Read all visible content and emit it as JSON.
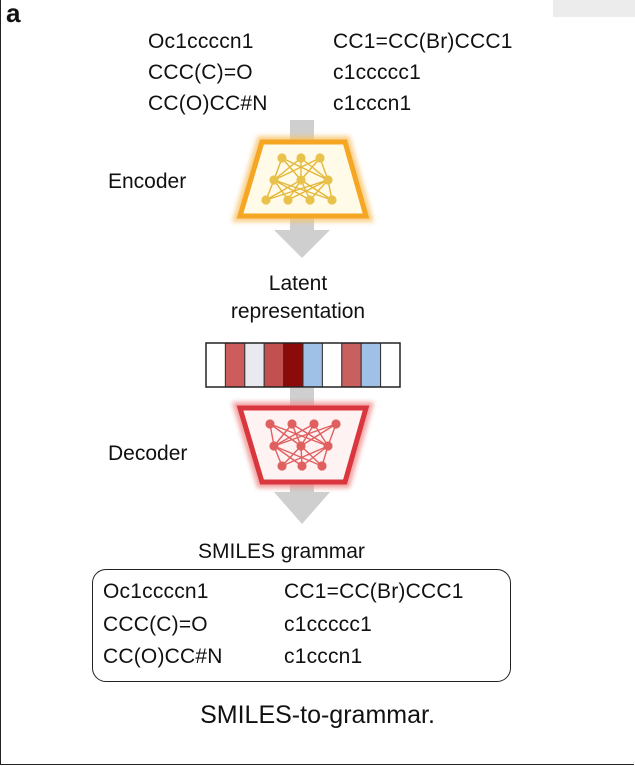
{
  "panel_letter": "a",
  "input_smiles": {
    "left": [
      "Oc1ccccn1",
      "CCC(C)=O",
      "CC(O)CC#N"
    ],
    "right": [
      "CC1=CC(Br)CCC1",
      "c1ccccc1",
      "c1cccn1"
    ]
  },
  "labels": {
    "encoder": "Encoder",
    "latent_line1": "Latent",
    "latent_line2": "representation",
    "decoder": "Decoder",
    "grammar": "SMILES grammar"
  },
  "output_smiles": {
    "left": [
      "Oc1ccccn1",
      "CCC(C)=O",
      "CC(O)CC#N"
    ],
    "right": [
      "CC1=CC(Br)CCC1",
      "c1ccccc1",
      "c1cccn1"
    ]
  },
  "latent_cells": [
    {
      "color": "#ffffff"
    },
    {
      "color": "#cd5c5c"
    },
    {
      "color": "#e9e9f0"
    },
    {
      "color": "#c25050"
    },
    {
      "color": "#8b0a0a"
    },
    {
      "color": "#9fc1e8"
    },
    {
      "color": "#ffffff"
    },
    {
      "color": "#c86060"
    },
    {
      "color": "#9fc1e8"
    },
    {
      "color": "#ffffff"
    }
  ],
  "colors": {
    "encoder": "#f5a623",
    "encoder_node": "#e8c24a",
    "decoder": "#d9363e",
    "decoder_node": "#e06060",
    "arrow": "#c8c8c8"
  },
  "caption": "SMILES-to-grammar."
}
